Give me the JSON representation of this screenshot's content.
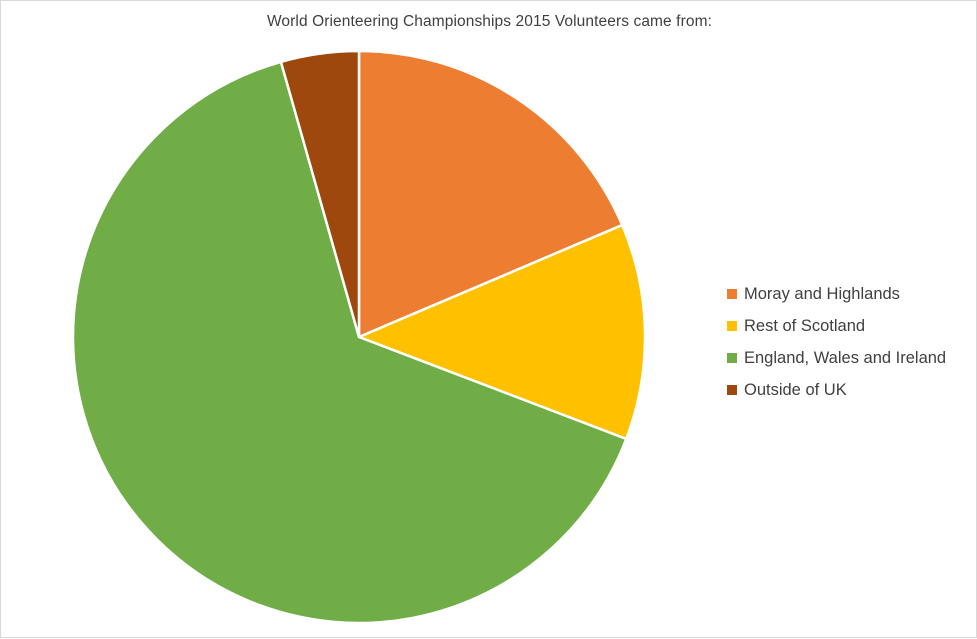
{
  "chart_data": {
    "type": "pie",
    "title": "World Orienteering Championships 2015 Volunteers came from:",
    "categories": [
      "Moray and Highlands",
      "Rest of Scotland",
      "England, Wales and Ireland",
      "Outside of UK"
    ],
    "values": [
      18.6,
      12.2,
      64.8,
      4.4
    ],
    "value_unit": "percent (estimated)",
    "colors": [
      "#ED7D31",
      "#FFC000",
      "#70AD47",
      "#9E480E"
    ],
    "start_angle": "12 o'clock",
    "direction": "clockwise",
    "legend_position": "right",
    "data_labels": false
  }
}
